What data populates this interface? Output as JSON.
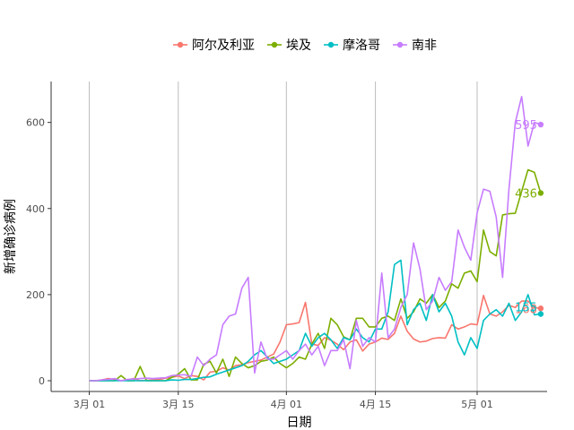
{
  "chart_data": {
    "type": "line",
    "xlabel": "日期",
    "ylabel": "新增确诊病例",
    "x_start": "2020-03-01",
    "x_end": "2020-05-09",
    "xlim": [
      "2020-02-24",
      "2020-05-12"
    ],
    "ylim": [
      -25,
      695
    ],
    "x_ticks": [
      {
        "date": "2020-03-01",
        "label": "3月 01"
      },
      {
        "date": "2020-03-15",
        "label": "3月 15"
      },
      {
        "date": "2020-04-01",
        "label": "4月 01"
      },
      {
        "date": "2020-04-15",
        "label": "4月 15"
      },
      {
        "date": "2020-05-01",
        "label": "5月 01"
      }
    ],
    "y_ticks": [
      0,
      200,
      400,
      600
    ],
    "grid": "vertical-major-x",
    "legend_position": "top",
    "series": [
      {
        "name": "阿尔及利亚",
        "color": "#F8766D",
        "end_label": "168",
        "values": [
          0,
          0,
          2,
          5,
          3,
          0,
          2,
          5,
          0,
          1,
          2,
          3,
          6,
          8,
          11,
          5,
          12,
          10,
          2,
          20,
          22,
          30,
          25,
          35,
          37,
          42,
          45,
          48,
          55,
          62,
          90,
          130,
          132,
          135,
          182,
          85,
          82,
          100,
          94,
          85,
          72,
          90,
          95,
          69,
          85,
          90,
          99,
          96,
          110,
          150,
          115,
          97,
          90,
          92,
          98,
          100,
          99,
          130,
          120,
          125,
          132,
          130,
          198,
          155,
          150,
          160,
          175,
          170,
          185,
          185,
          170,
          168
        ]
      },
      {
        "name": "埃及",
        "color": "#7CAE00",
        "end_label": "436",
        "values": [
          0,
          0,
          0,
          0,
          0,
          12,
          0,
          0,
          33,
          0,
          0,
          0,
          0,
          8,
          15,
          28,
          2,
          2,
          38,
          45,
          18,
          50,
          10,
          55,
          40,
          30,
          35,
          45,
          48,
          55,
          40,
          30,
          40,
          55,
          50,
          85,
          110,
          75,
          145,
          130,
          102,
          95,
          145,
          145,
          125,
          125,
          145,
          150,
          140,
          190,
          145,
          160,
          190,
          180,
          200,
          170,
          185,
          225,
          215,
          250,
          255,
          230,
          350,
          300,
          290,
          385,
          388,
          389,
          440,
          490,
          484,
          436
        ]
      },
      {
        "name": "摩洛哥",
        "color": "#00BFC4",
        "end_label": "155",
        "values": [
          0,
          0,
          0,
          0,
          0,
          0,
          0,
          0,
          0,
          0,
          0,
          0,
          0,
          2,
          1,
          3,
          3,
          5,
          8,
          9,
          15,
          20,
          25,
          30,
          35,
          45,
          60,
          70,
          55,
          40,
          45,
          50,
          60,
          70,
          110,
          80,
          100,
          110,
          95,
          75,
          100,
          95,
          120,
          100,
          90,
          120,
          120,
          160,
          270,
          280,
          130,
          165,
          180,
          140,
          200,
          160,
          180,
          150,
          90,
          60,
          100,
          75,
          140,
          155,
          165,
          150,
          180,
          140,
          160,
          200,
          153,
          155
        ]
      },
      {
        "name": "南非",
        "color": "#C77CFF",
        "end_label": "595",
        "values": [
          0,
          0,
          2,
          3,
          5,
          0,
          3,
          4,
          5,
          6,
          5,
          6,
          7,
          12,
          13,
          14,
          10,
          55,
          35,
          50,
          60,
          130,
          150,
          155,
          215,
          240,
          18,
          90,
          50,
          50,
          60,
          70,
          50,
          70,
          85,
          60,
          80,
          35,
          70,
          70,
          95,
          28,
          140,
          80,
          100,
          90,
          250,
          100,
          120,
          170,
          200,
          320,
          260,
          165,
          185,
          240,
          210,
          230,
          350,
          310,
          280,
          390,
          445,
          440,
          380,
          240,
          445,
          600,
          660,
          545,
          600,
          595
        ]
      }
    ]
  }
}
